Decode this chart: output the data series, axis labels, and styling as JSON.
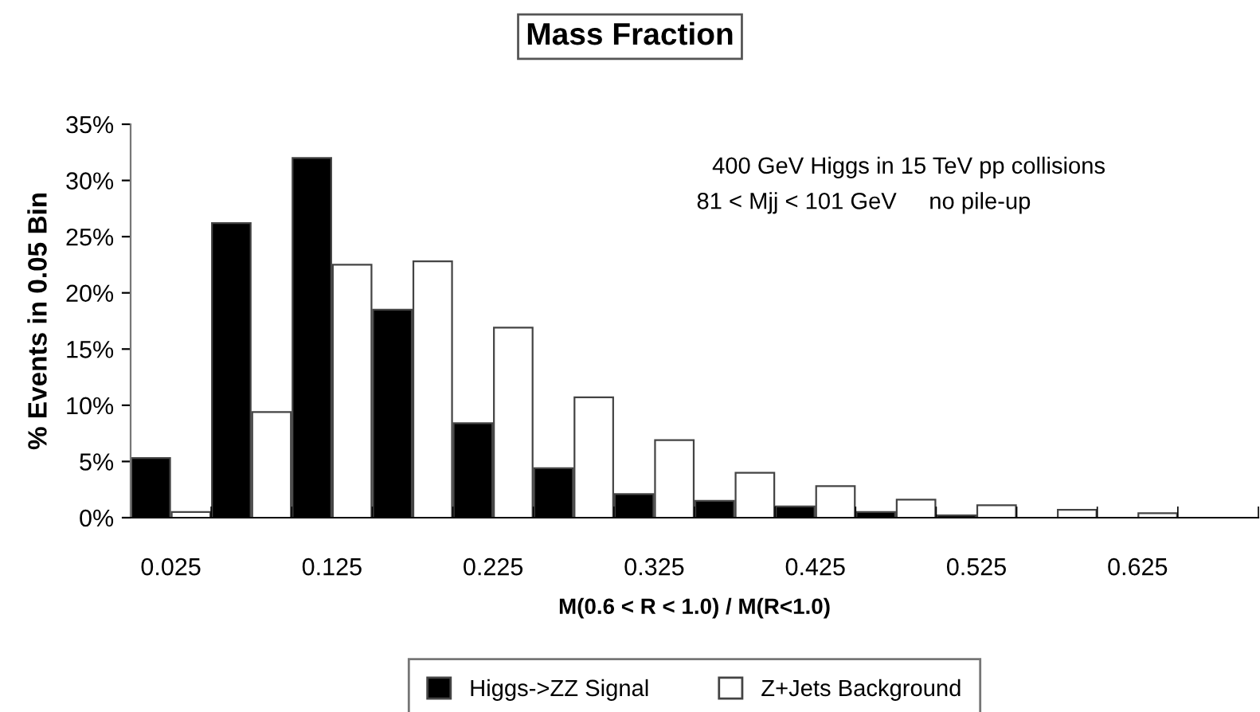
{
  "chart_data": {
    "type": "bar",
    "title": "Mass Fraction",
    "xlabel": "M(0.6 < R < 1.0) / M(R<1.0)",
    "ylabel": "% Events in 0.05 Bin",
    "categories": [
      "0.025",
      null,
      "0.125",
      null,
      "0.225",
      null,
      "0.325",
      null,
      "0.425",
      null,
      "0.525",
      null,
      "0.625",
      null
    ],
    "series": [
      {
        "name": "Higgs->ZZ Signal",
        "color": "#000000",
        "values": [
          5.3,
          26.2,
          32.0,
          18.5,
          8.4,
          4.4,
          2.1,
          1.5,
          1.0,
          0.5,
          0.2,
          null,
          null,
          null
        ]
      },
      {
        "name": "Z+Jets Background",
        "color": "#ffffff",
        "values": [
          0.5,
          9.4,
          22.5,
          22.8,
          16.9,
          10.7,
          6.9,
          4.0,
          2.8,
          1.6,
          1.1,
          0.7,
          0.4,
          null
        ]
      }
    ],
    "ylim": [
      0,
      35
    ],
    "yticks": [
      {
        "value": 0,
        "label": "0%"
      },
      {
        "value": 5,
        "label": "5%"
      },
      {
        "value": 10,
        "label": "10%"
      },
      {
        "value": 15,
        "label": "15%"
      },
      {
        "value": 20,
        "label": "20%"
      },
      {
        "value": 25,
        "label": "25%"
      },
      {
        "value": 30,
        "label": "30%"
      },
      {
        "value": 35,
        "label": "35%"
      }
    ],
    "annotations": [
      "400 GeV Higgs in 15 TeV pp collisions",
      "81 < Mjj < 101 GeV     no pile-up"
    ],
    "grid": false,
    "legend": "bottom"
  }
}
